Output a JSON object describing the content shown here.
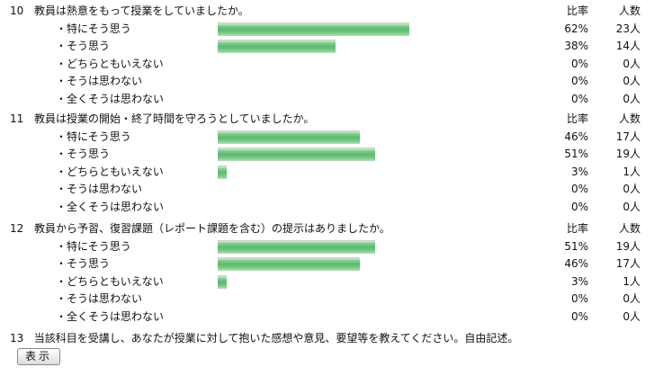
{
  "columns": {
    "rate": "比率",
    "count": "人数"
  },
  "questions": [
    {
      "number": "10",
      "text": "教員は熱意をもって授業をしていましたか。",
      "answers": [
        {
          "label": "・特にそう思う",
          "percent": 62,
          "percent_label": "62%",
          "count": "23人"
        },
        {
          "label": "・そう思う",
          "percent": 38,
          "percent_label": "38%",
          "count": "14人"
        },
        {
          "label": "・どちらともいえない",
          "percent": 0,
          "percent_label": "0%",
          "count": "0人"
        },
        {
          "label": "・そうは思わない",
          "percent": 0,
          "percent_label": "0%",
          "count": "0人"
        },
        {
          "label": "・全くそうは思わない",
          "percent": 0,
          "percent_label": "0%",
          "count": "0人"
        }
      ]
    },
    {
      "number": "11",
      "text": "教員は授業の開始・終了時間を守ろうとしていましたか。",
      "answers": [
        {
          "label": "・特にそう思う",
          "percent": 46,
          "percent_label": "46%",
          "count": "17人"
        },
        {
          "label": "・そう思う",
          "percent": 51,
          "percent_label": "51%",
          "count": "19人"
        },
        {
          "label": "・どちらともいえない",
          "percent": 3,
          "percent_label": "3%",
          "count": "1人"
        },
        {
          "label": "・そうは思わない",
          "percent": 0,
          "percent_label": "0%",
          "count": "0人"
        },
        {
          "label": "・全くそうは思わない",
          "percent": 0,
          "percent_label": "0%",
          "count": "0人"
        }
      ]
    },
    {
      "number": "12",
      "text": "教員から予習、復習課題（レポート課題を含む）の提示はありましたか。",
      "answers": [
        {
          "label": "・特にそう思う",
          "percent": 51,
          "percent_label": "51%",
          "count": "19人"
        },
        {
          "label": "・そう思う",
          "percent": 46,
          "percent_label": "46%",
          "count": "17人"
        },
        {
          "label": "・どちらともいえない",
          "percent": 3,
          "percent_label": "3%",
          "count": "1人"
        },
        {
          "label": "・そうは思わない",
          "percent": 0,
          "percent_label": "0%",
          "count": "0人"
        },
        {
          "label": "・全くそうは思わない",
          "percent": 0,
          "percent_label": "0%",
          "count": "0人"
        }
      ]
    }
  ],
  "q13": {
    "number": "13",
    "text": "当該科目を受講し、あなたが授業に対して抱いた感想や意見、要望等を教えてください。自由記述。",
    "button": "表示"
  },
  "colors": {
    "bar": "#5cb870"
  }
}
